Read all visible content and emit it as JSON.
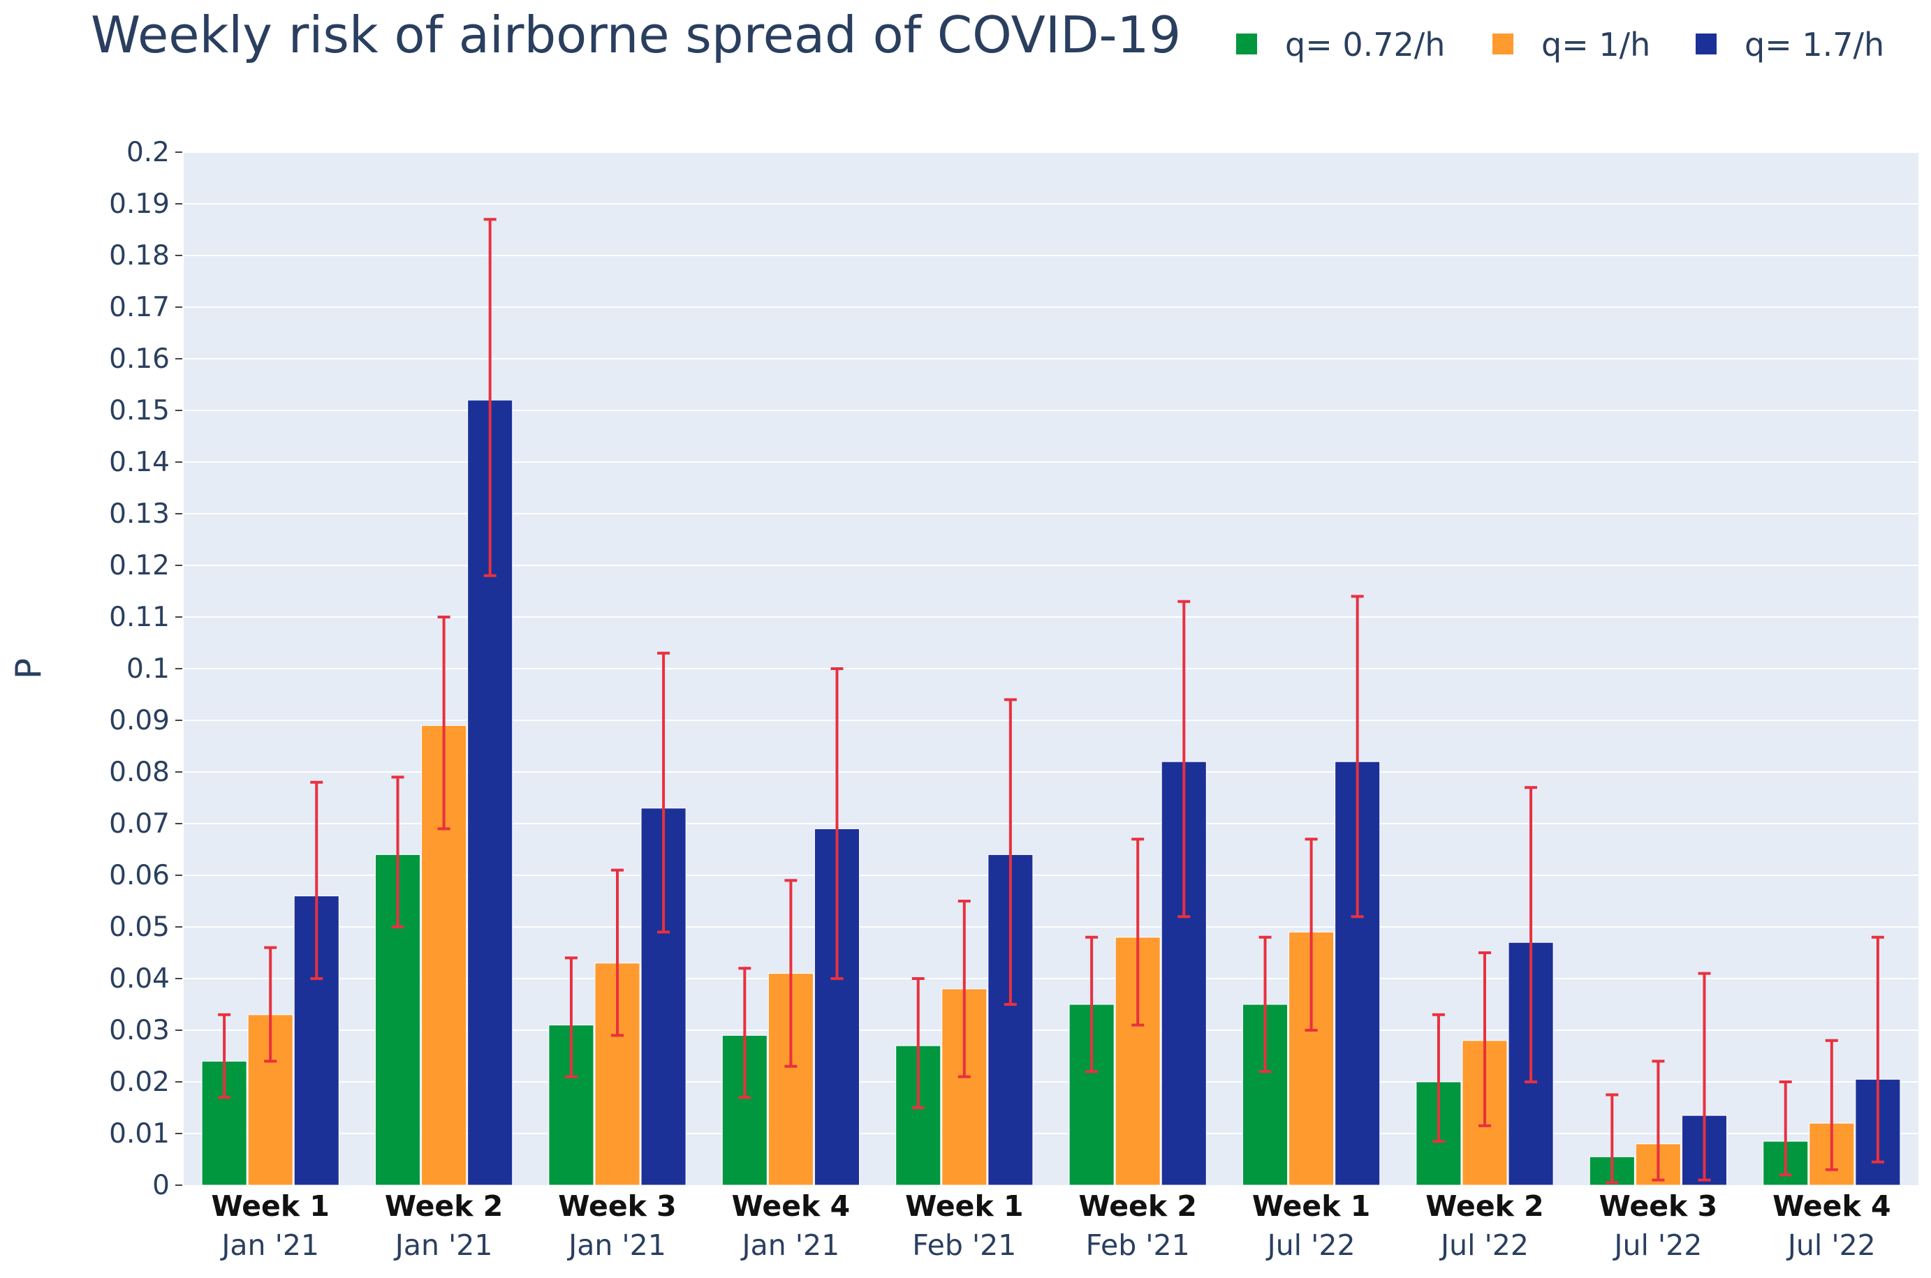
{
  "chart_data": {
    "type": "bar",
    "title": "Weekly risk of airborne spread of COVID-19",
    "ylabel": "P",
    "xlabel": "",
    "ylim": [
      0,
      0.2
    ],
    "ytick_step": 0.01,
    "grid": true,
    "legend_position": "top-right",
    "plot_background": "#e5ecf6",
    "error_bar_color": "#e8313f",
    "categories": [
      {
        "week": "Week 1",
        "period": "Jan '21"
      },
      {
        "week": "Week 2",
        "period": "Jan '21"
      },
      {
        "week": "Week 3",
        "period": "Jan '21"
      },
      {
        "week": "Week 4",
        "period": "Jan '21"
      },
      {
        "week": "Week 1",
        "period": "Feb '21"
      },
      {
        "week": "Week 2",
        "period": "Feb '21"
      },
      {
        "week": "Week 1",
        "period": "Jul '22"
      },
      {
        "week": "Week 2",
        "period": "Jul '22"
      },
      {
        "week": "Week 3",
        "period": "Jul '22"
      },
      {
        "week": "Week 4",
        "period": "Jul '22"
      }
    ],
    "series": [
      {
        "name": "q= 0.72/h",
        "color": "#00973f",
        "values": [
          0.024,
          0.064,
          0.031,
          0.029,
          0.027,
          0.035,
          0.035,
          0.02,
          0.0055,
          0.0085
        ],
        "error_lower": [
          0.017,
          0.05,
          0.021,
          0.017,
          0.015,
          0.022,
          0.022,
          0.0085,
          0.0005,
          0.002
        ],
        "error_upper": [
          0.033,
          0.079,
          0.044,
          0.042,
          0.04,
          0.048,
          0.048,
          0.033,
          0.0175,
          0.02
        ]
      },
      {
        "name": "q= 1/h",
        "color": "#ff9a2e",
        "values": [
          0.033,
          0.089,
          0.043,
          0.041,
          0.038,
          0.048,
          0.049,
          0.028,
          0.008,
          0.012
        ],
        "error_lower": [
          0.024,
          0.069,
          0.029,
          0.023,
          0.021,
          0.031,
          0.03,
          0.0115,
          0.001,
          0.003
        ],
        "error_upper": [
          0.046,
          0.11,
          0.061,
          0.059,
          0.055,
          0.067,
          0.067,
          0.045,
          0.024,
          0.028
        ]
      },
      {
        "name": "q= 1.7/h",
        "color": "#1c3197",
        "values": [
          0.056,
          0.152,
          0.073,
          0.069,
          0.064,
          0.082,
          0.082,
          0.047,
          0.0135,
          0.0205
        ],
        "error_lower": [
          0.04,
          0.118,
          0.049,
          0.04,
          0.035,
          0.052,
          0.052,
          0.02,
          0.001,
          0.0045
        ],
        "error_upper": [
          0.078,
          0.187,
          0.103,
          0.1,
          0.094,
          0.113,
          0.114,
          0.077,
          0.041,
          0.048
        ]
      }
    ]
  }
}
